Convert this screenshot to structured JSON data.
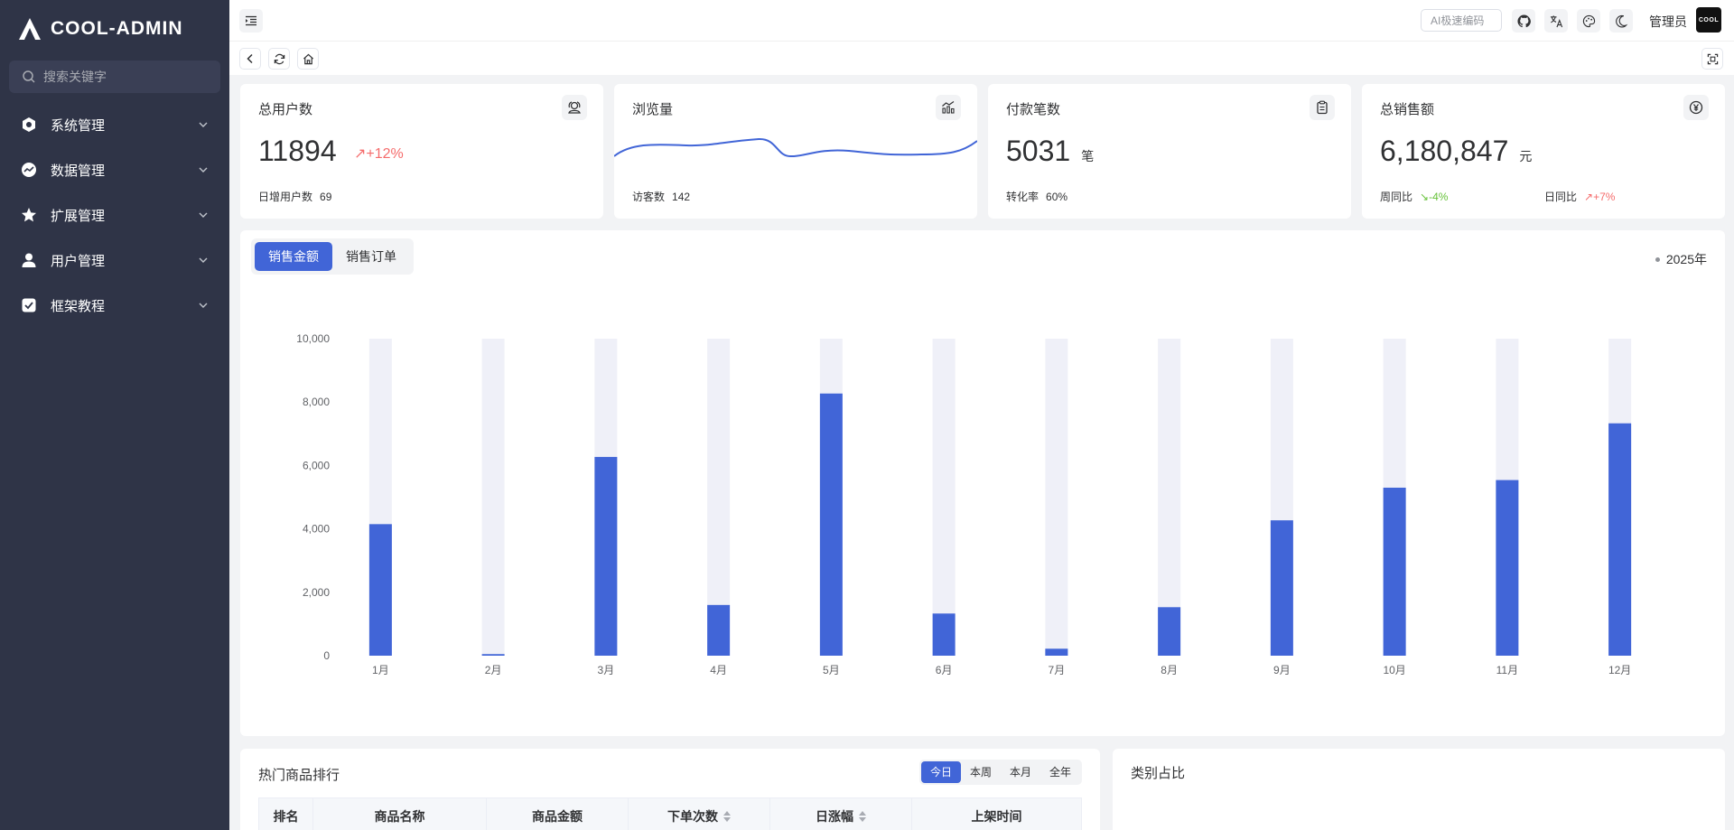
{
  "sidebar": {
    "logo_text": "COOL-ADMIN",
    "search_placeholder": "搜索关键字",
    "items": [
      {
        "label": "系统管理",
        "icon": "settings-hex-icon"
      },
      {
        "label": "数据管理",
        "icon": "chart-circle-icon"
      },
      {
        "label": "扩展管理",
        "icon": "star-icon"
      },
      {
        "label": "用户管理",
        "icon": "user-icon"
      },
      {
        "label": "框架教程",
        "icon": "check-square-icon"
      }
    ]
  },
  "topbar": {
    "ai_placeholder": "AI极速编码",
    "user_name": "管理员",
    "avatar_text": "COOL"
  },
  "stats": {
    "users": {
      "title": "总用户数",
      "value": "11894",
      "trend": "↗+12%",
      "foot_label": "日增用户数",
      "foot_value": "69"
    },
    "views": {
      "title": "浏览量",
      "foot_label": "访客数",
      "foot_value": "142"
    },
    "payments": {
      "title": "付款笔数",
      "value": "5031",
      "unit": "笔",
      "foot_label": "转化率",
      "foot_value": "60%"
    },
    "sales": {
      "title": "总销售额",
      "value": "6,180,847",
      "unit": "元",
      "week_label": "周同比",
      "week_value": "↘-4%",
      "day_label": "日同比",
      "day_value": "↗+7%"
    }
  },
  "sales_panel": {
    "tabs": [
      "销售金额",
      "销售订单"
    ],
    "active_tab": 0,
    "year_label": "2025年"
  },
  "chart_data": {
    "type": "bar",
    "categories": [
      "1月",
      "2月",
      "3月",
      "4月",
      "5月",
      "6月",
      "7月",
      "8月",
      "9月",
      "10月",
      "11月",
      "12月"
    ],
    "values": [
      4150,
      50,
      6270,
      1600,
      8270,
      1330,
      220,
      1530,
      4270,
      5300,
      5540,
      7330
    ],
    "background_max": 10000,
    "ylim": [
      0,
      10000
    ],
    "yticks": [
      0,
      2000,
      4000,
      6000,
      8000,
      10000
    ],
    "ytick_labels": [
      "0",
      "2,000",
      "4,000",
      "6,000",
      "8,000",
      "10,000"
    ],
    "bar_color": "#4165d7",
    "background_color": "#eff0f8",
    "grid": false
  },
  "hot_products": {
    "title": "热门商品排行",
    "periods": [
      "今日",
      "本周",
      "本月",
      "全年"
    ],
    "active_period": 0,
    "columns": [
      "排名",
      "商品名称",
      "商品金额",
      "下单次数",
      "日涨幅",
      "上架时间"
    ]
  },
  "category": {
    "title": "类别占比"
  },
  "colors": {
    "sidebar_bg": "#2f3447",
    "accent": "#4165d7",
    "up": "#f56c6c",
    "down": "#67c23a"
  }
}
